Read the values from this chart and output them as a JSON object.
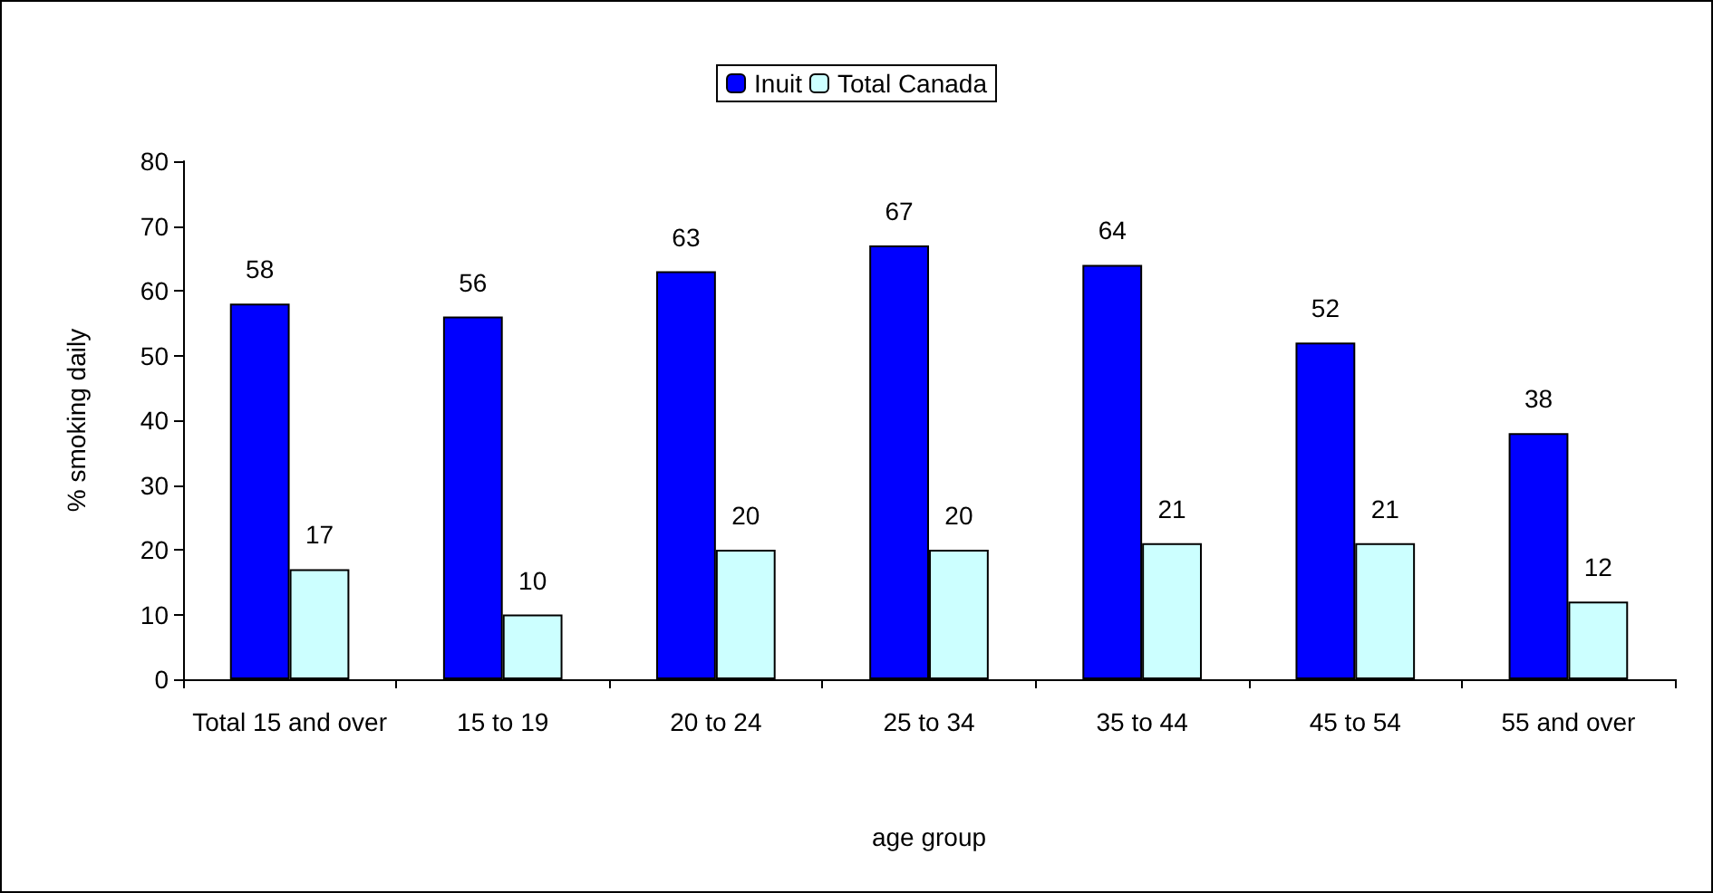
{
  "chart_data": {
    "type": "bar",
    "xlabel": "age group",
    "ylabel": "% smoking daily",
    "categories": [
      "Total 15 and over",
      "15 to 19",
      "20 to 24",
      "25 to 34",
      "35 to 44",
      "45 to 54",
      "55 and over"
    ],
    "series": [
      {
        "name": "Inuit",
        "color": "#0000ff",
        "values": [
          58,
          56,
          63,
          67,
          64,
          52,
          38
        ]
      },
      {
        "name": "Total Canada",
        "color": "#ccffff",
        "values": [
          17,
          10,
          20,
          20,
          21,
          21,
          12
        ]
      }
    ],
    "ylim": [
      0,
      80
    ],
    "yticks": [
      0,
      10,
      20,
      30,
      40,
      50,
      60,
      70,
      80
    ],
    "data_labels": true,
    "legend": "top",
    "grid": false
  }
}
